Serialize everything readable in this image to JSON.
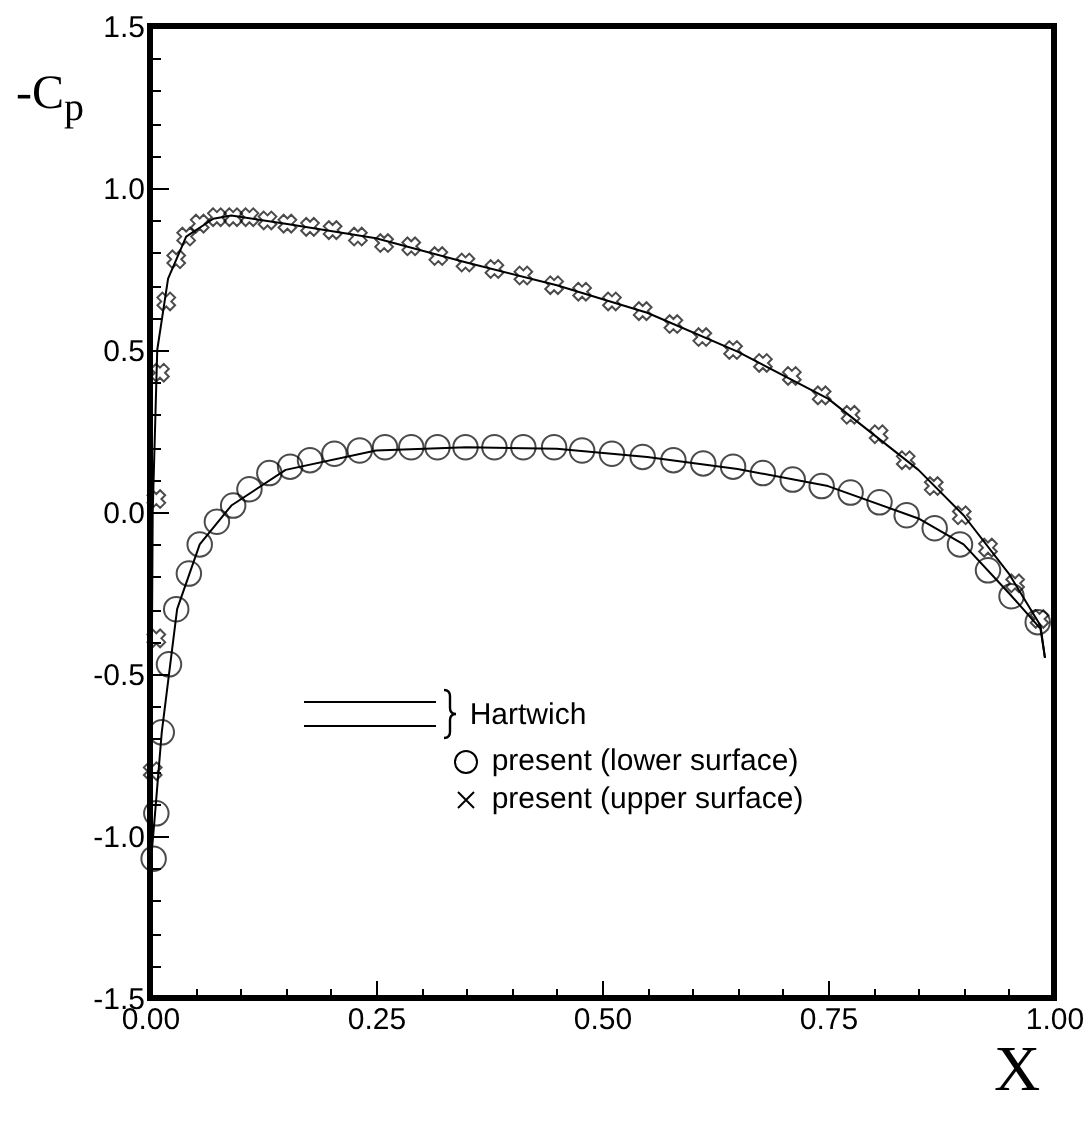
{
  "chart_data": {
    "type": "scatter",
    "xlabel": "X",
    "ylabel": "-C$_{p}$",
    "xlim": [
      0,
      1
    ],
    "ylim": [
      -1.5,
      1.5
    ],
    "xticks": [
      {
        "value": 0,
        "label": "0.00"
      },
      {
        "value": 0.05,
        "label": null
      },
      {
        "value": 0.1,
        "label": null
      },
      {
        "value": 0.15,
        "label": null
      },
      {
        "value": 0.2,
        "label": null
      },
      {
        "value": 0.25,
        "label": "0.25"
      },
      {
        "value": 0.3,
        "label": null
      },
      {
        "value": 0.35,
        "label": null
      },
      {
        "value": 0.4,
        "label": null
      },
      {
        "value": 0.45,
        "label": null
      },
      {
        "value": 0.5,
        "label": "0.50"
      },
      {
        "value": 0.55,
        "label": null
      },
      {
        "value": 0.6,
        "label": null
      },
      {
        "value": 0.65,
        "label": null
      },
      {
        "value": 0.7,
        "label": null
      },
      {
        "value": 0.75,
        "label": "0.75"
      },
      {
        "value": 0.8,
        "label": null
      },
      {
        "value": 0.85,
        "label": null
      },
      {
        "value": 0.9,
        "label": null
      },
      {
        "value": 0.95,
        "label": null
      },
      {
        "value": 1,
        "label": "1.00"
      }
    ],
    "yticks": [
      -1.5,
      {
        "value": -1.4,
        "label": null
      },
      {
        "value": -1.3,
        "label": null
      },
      {
        "value": -1.2,
        "label": null
      },
      {
        "value": -1.1,
        "label": null
      },
      {
        "value": -1,
        "label": "-1.0"
      },
      {
        "value": -0.9,
        "label": null
      },
      {
        "value": -0.8,
        "label": null
      },
      {
        "value": -0.7,
        "label": null
      },
      {
        "value": -0.6,
        "label": null
      },
      -0.5,
      {
        "value": -0.4,
        "label": null
      },
      {
        "value": -0.3,
        "label": null
      },
      {
        "value": -0.2,
        "label": null
      },
      {
        "value": -0.1,
        "label": null
      },
      {
        "value": 0,
        "label": "0.0"
      },
      {
        "value": 0.1,
        "label": null
      },
      {
        "value": 0.2,
        "label": null
      },
      {
        "value": 0.3,
        "label": null
      },
      {
        "value": 0.4,
        "label": null
      },
      0.5,
      {
        "value": 0.6,
        "label": null
      },
      {
        "value": 0.7,
        "label": null
      },
      {
        "value": 0.8,
        "label": null
      },
      {
        "value": 0.9,
        "label": null
      },
      {
        "value": 1,
        "label": "1.0"
      },
      {
        "value": 1.1,
        "label": null
      },
      {
        "value": 1.2,
        "label": null
      },
      {
        "value": 1.3,
        "label": null
      },
      {
        "value": 1.4,
        "label": null
      },
      1.5
    ],
    "grid": false,
    "legend": "bottom left",
    "series": [
      {
        "name": "Hartwich",
        "type": "line",
        "color": "#000000",
        "line_style": "solid",
        "x": [
          0.001,
          0.003,
          0.008,
          0.02,
          0.04,
          0.07,
          0.09,
          0.15,
          0.25,
          0.35,
          0.45,
          0.55,
          0.65,
          0.75,
          0.85,
          0.9,
          0.95,
          0.985,
          0.99
        ],
        "values": [
          -0.9,
          0.0,
          0.5,
          0.72,
          0.85,
          0.905,
          0.915,
          0.89,
          0.845,
          0.77,
          0.7,
          0.615,
          0.495,
          0.35,
          0.13,
          -0.01,
          -0.19,
          -0.35,
          -0.45
        ]
      },
      {
        "type": "line",
        "color": "#000000",
        "line_style": "solid",
        "x": [
          0.001,
          0.005,
          0.013,
          0.03,
          0.055,
          0.09,
          0.15,
          0.25,
          0.35,
          0.45,
          0.55,
          0.65,
          0.75,
          0.85,
          0.9,
          0.95,
          0.985,
          0.99
        ],
        "values": [
          -1.08,
          -0.95,
          -0.68,
          -0.3,
          -0.1,
          0.02,
          0.13,
          0.19,
          0.2,
          0.195,
          0.17,
          0.133,
          0.08,
          -0.02,
          -0.1,
          -0.25,
          -0.36,
          -0.45
        ]
      },
      {
        "name": "present (lower surface)",
        "color": "#000000",
        "marker": "circle",
        "x": [
          0.004,
          0.007,
          0.013,
          0.021,
          0.029,
          0.043,
          0.055,
          0.074,
          0.092,
          0.11,
          0.132,
          0.155,
          0.177,
          0.204,
          0.232,
          0.26,
          0.289,
          0.318,
          0.349,
          0.381,
          0.413,
          0.447,
          0.478,
          0.511,
          0.545,
          0.579,
          0.612,
          0.645,
          0.678,
          0.711,
          0.743,
          0.775,
          0.807,
          0.837,
          0.868,
          0.896,
          0.927,
          0.953,
          0.982
        ],
        "values": [
          -1.07,
          -0.93,
          -0.68,
          -0.47,
          -0.3,
          -0.19,
          -0.1,
          -0.03,
          0.02,
          0.07,
          0.12,
          0.14,
          0.16,
          0.18,
          0.19,
          0.2,
          0.2,
          0.2,
          0.2,
          0.2,
          0.2,
          0.2,
          0.19,
          0.18,
          0.17,
          0.16,
          0.15,
          0.14,
          0.12,
          0.1,
          0.08,
          0.06,
          0.03,
          -0.01,
          -0.05,
          -0.1,
          -0.18,
          -0.26,
          -0.34
        ]
      },
      {
        "name": "present (upper surface)",
        "color": "#000000",
        "marker": "cross",
        "x": [
          0.003,
          0.007,
          0.007,
          0.011,
          0.018,
          0.029,
          0.04,
          0.055,
          0.074,
          0.092,
          0.11,
          0.13,
          0.152,
          0.177,
          0.202,
          0.23,
          0.259,
          0.289,
          0.319,
          0.349,
          0.381,
          0.413,
          0.447,
          0.478,
          0.511,
          0.545,
          0.579,
          0.611,
          0.645,
          0.678,
          0.71,
          0.743,
          0.775,
          0.806,
          0.836,
          0.867,
          0.898,
          0.927,
          0.957,
          0.984
        ],
        "values": [
          -0.8,
          -0.39,
          0.04,
          0.43,
          0.65,
          0.78,
          0.85,
          0.89,
          0.91,
          0.91,
          0.91,
          0.9,
          0.89,
          0.88,
          0.87,
          0.85,
          0.83,
          0.82,
          0.79,
          0.77,
          0.75,
          0.73,
          0.7,
          0.68,
          0.65,
          0.62,
          0.58,
          0.54,
          0.5,
          0.46,
          0.42,
          0.36,
          0.3,
          0.24,
          0.16,
          0.08,
          -0.01,
          -0.11,
          -0.22,
          -0.33
        ]
      }
    ]
  }
}
